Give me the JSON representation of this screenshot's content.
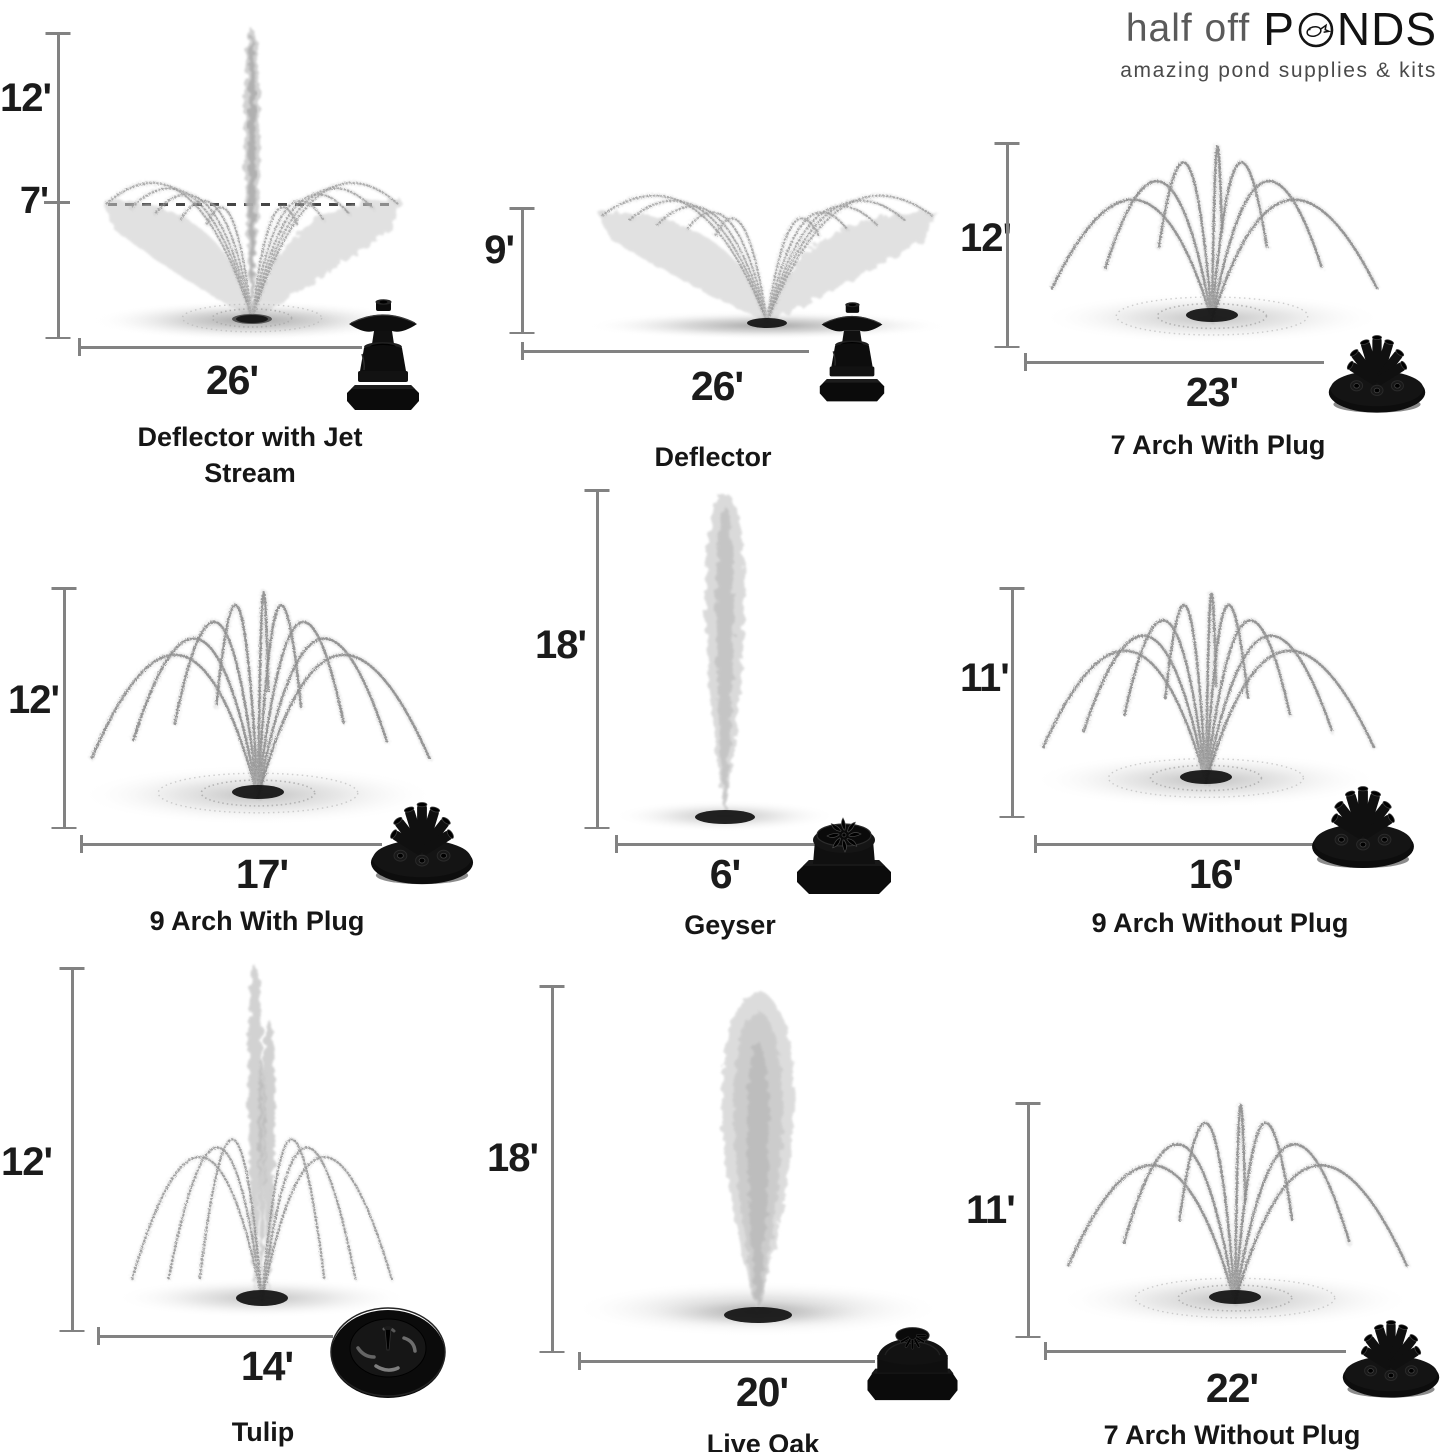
{
  "logo": {
    "brand_light": "half off",
    "brand_p": "P",
    "brand_nds": "NDS",
    "tagline": "amazing pond supplies & kits"
  },
  "colors": {
    "ink": "#1a1a1a",
    "dim_line": "#828282",
    "nozzle_black": "#0e0e0e"
  },
  "cells": [
    {
      "name": "Deflector with Jet Stream",
      "height": "12'",
      "height2": "7'",
      "width": "26'",
      "spray_pattern": "jet-with-umbrella",
      "nozzle_icon": "deflector-nozzle-icon"
    },
    {
      "name": "Deflector",
      "height": "9'",
      "width": "26'",
      "spray_pattern": "umbrella-fan",
      "nozzle_icon": "deflector-nozzle-icon"
    },
    {
      "name": "7 Arch With Plug",
      "height": "12'",
      "width": "23'",
      "spray_pattern": "7-arch",
      "nozzle_icon": "multi-arm-nozzle-icon"
    },
    {
      "name": "9 Arch With Plug",
      "height": "12'",
      "width": "17'",
      "spray_pattern": "9-arch",
      "nozzle_icon": "multi-arm-nozzle-icon"
    },
    {
      "name": "Geyser",
      "height": "18'",
      "width": "6'",
      "spray_pattern": "geyser-column",
      "nozzle_icon": "geyser-cap-nozzle-icon"
    },
    {
      "name": "9 Arch Without Plug",
      "height": "11'",
      "width": "16'",
      "spray_pattern": "9-arch",
      "nozzle_icon": "multi-arm-nozzle-icon"
    },
    {
      "name": "Tulip",
      "height": "12'",
      "width": "14'",
      "spray_pattern": "tulip",
      "nozzle_icon": "tulip-disc-nozzle-icon"
    },
    {
      "name": "Live Oak",
      "height": "18'",
      "width": "20'",
      "spray_pattern": "wide-plume",
      "nozzle_icon": "dome-cap-nozzle-icon"
    },
    {
      "name": "7 Arch Without Plug",
      "height": "11'",
      "width": "22'",
      "spray_pattern": "7-arch",
      "nozzle_icon": "multi-arm-nozzle-icon"
    }
  ]
}
